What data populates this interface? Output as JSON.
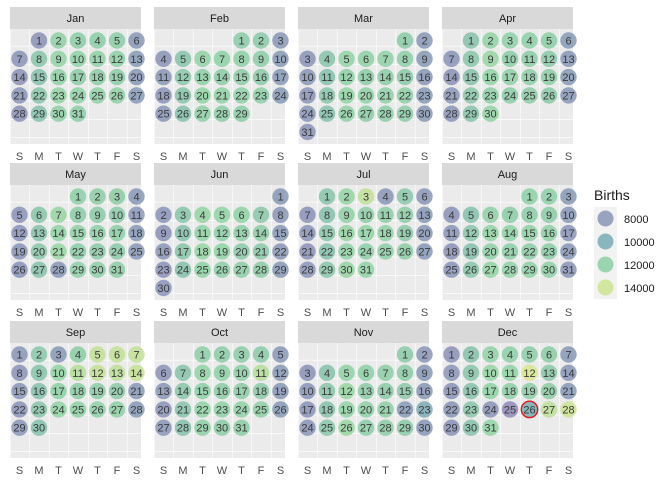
{
  "chart_data": {
    "type": "calendar-heatmap",
    "year_start_weekday": 1,
    "leap_year": true,
    "months": [
      "Jan",
      "Feb",
      "Mar",
      "Apr",
      "May",
      "Jun",
      "Jul",
      "Aug",
      "Sep",
      "Oct",
      "Nov",
      "Dec"
    ],
    "days_in_month": [
      31,
      29,
      31,
      30,
      31,
      30,
      31,
      31,
      30,
      31,
      30,
      31
    ],
    "weekday_labels": [
      "S",
      "M",
      "T",
      "W",
      "T",
      "F",
      "S"
    ],
    "legend": {
      "title": "Births",
      "breaks": [
        8000,
        10000,
        12000,
        14000
      ],
      "labels": [
        "8000",
        "10000",
        "12000",
        "14000"
      ],
      "position": "right"
    },
    "scale": {
      "min": 7000,
      "max": 14500,
      "palette": "viridis-light"
    },
    "weekday_typical_births": [
      7800,
      11300,
      12200,
      12000,
      11900,
      11800,
      8200
    ],
    "special_days": [
      {
        "month": "Jan",
        "day": 1,
        "births": 7600
      },
      {
        "month": "May",
        "day": 28,
        "births": 8100
      },
      {
        "month": "Jul",
        "day": 3,
        "births": 13600
      },
      {
        "month": "Jul",
        "day": 4,
        "births": 8200
      },
      {
        "month": "Sep",
        "day": 3,
        "births": 8200
      },
      {
        "month": "Sep",
        "day": 5,
        "births": 13700
      },
      {
        "month": "Sep",
        "day": 6,
        "births": 13700
      },
      {
        "month": "Sep",
        "day": 7,
        "births": 13700
      },
      {
        "month": "Sep",
        "day": 11,
        "births": 13300
      },
      {
        "month": "Sep",
        "day": 12,
        "births": 13700
      },
      {
        "month": "Sep",
        "day": 13,
        "births": 13500
      },
      {
        "month": "Sep",
        "day": 14,
        "births": 13800
      },
      {
        "month": "Oct",
        "day": 11,
        "births": 13300
      },
      {
        "month": "Nov",
        "day": 22,
        "births": 8500
      },
      {
        "month": "Nov",
        "day": 23,
        "births": 9800
      },
      {
        "month": "Dec",
        "day": 12,
        "births": 14300
      },
      {
        "month": "Dec",
        "day": 24,
        "births": 7800
      },
      {
        "month": "Dec",
        "day": 25,
        "births": 7000
      },
      {
        "month": "Dec",
        "day": 26,
        "births": 10000
      },
      {
        "month": "Dec",
        "day": 27,
        "births": 13500
      },
      {
        "month": "Dec",
        "day": 28,
        "births": 13900
      }
    ],
    "highlighted_day": {
      "month": "Dec",
      "day": 26
    }
  }
}
